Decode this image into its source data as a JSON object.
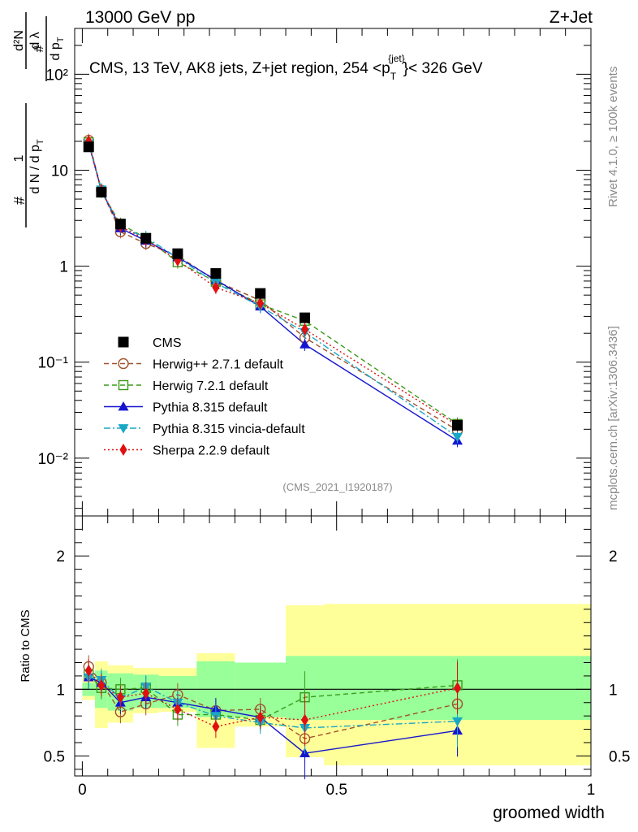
{
  "header": {
    "left": "13000 GeV pp",
    "right": "Z+Jet"
  },
  "side_text": {
    "rivet": "Rivet 4.1.0, ≥ 100k events",
    "mcplots": "mcplots.cern.ch [arXiv:1306.3436]"
  },
  "chart_data": [
    {
      "type": "scatter",
      "title": "CMS, 13 TeV, AK8 jets, Z+jet region, 254 <p",
      "title_sup": "{jet}",
      "title_sub": "T",
      "title_tail": "}< 326 GeV",
      "analysis_tag": "(CMS_2021_I1920187)",
      "ylabel": "1/N dN/dλ (per p_T)",
      "yscale": "log",
      "ylim": [
        0.0025,
        300
      ],
      "xlim": [
        -0.015,
        1.0
      ],
      "y_tick_labels": [
        "10⁻²",
        "10⁻¹",
        "1",
        "10",
        "10²"
      ],
      "x": [
        0.0125,
        0.0375,
        0.075,
        0.125,
        0.1875,
        0.2625,
        0.35,
        0.4375,
        0.7375
      ],
      "series": [
        {
          "name": "CMS",
          "color": "#000000",
          "marker": "square-filled",
          "line": "none",
          "values": [
            17.5,
            5.9,
            2.75,
            1.95,
            1.35,
            0.84,
            0.52,
            0.29,
            0.022
          ]
        },
        {
          "name": "Herwig++ 2.7.1 default",
          "color": "#a0522d",
          "marker": "circle-open",
          "line": "dashed",
          "values": [
            20.5,
            6.2,
            2.28,
            1.72,
            1.29,
            0.7,
            0.44,
            0.18,
            0.0195
          ]
        },
        {
          "name": "Herwig 7.2.1 default",
          "color": "#3a9a1a",
          "marker": "square-open",
          "line": "dashed",
          "values": [
            19.5,
            6.0,
            2.75,
            1.97,
            1.1,
            0.69,
            0.4,
            0.27,
            0.0227
          ]
        },
        {
          "name": "Pythia 8.315 default",
          "color": "#1515d0",
          "marker": "triangle-up",
          "line": "solid",
          "values": [
            19.0,
            6.2,
            2.48,
            1.84,
            1.24,
            0.72,
            0.38,
            0.153,
            0.0152
          ]
        },
        {
          "name": "Pythia 8.315 vincia-default",
          "color": "#1aa7c6",
          "marker": "triangle-down",
          "line": "dashdot",
          "values": [
            19.0,
            6.3,
            2.55,
            2.0,
            1.22,
            0.67,
            0.38,
            0.205,
            0.0167
          ]
        },
        {
          "name": "Sherpa 2.2.9 default",
          "color": "#e01010",
          "marker": "diamond",
          "line": "dotted",
          "values": [
            20.0,
            6.1,
            2.6,
            1.89,
            1.15,
            0.6,
            0.41,
            0.22,
            0.022
          ]
        }
      ]
    },
    {
      "type": "scatter",
      "ylabel": "Ratio to CMS",
      "xlabel": "groomed width",
      "ylim": [
        0.35,
        2.3
      ],
      "xlim": [
        -0.015,
        1.0
      ],
      "y_tick_labels": [
        "0.5",
        "1",
        "2"
      ],
      "x_tick_labels": [
        "0",
        "0.5",
        "1"
      ],
      "band_edges": [
        0,
        0.025,
        0.05,
        0.1,
        0.15,
        0.225,
        0.3,
        0.4,
        0.475,
        1.0
      ],
      "band_inner": [
        [
          0.95,
          1.05
        ],
        [
          0.86,
          1.14
        ],
        [
          0.84,
          1.12
        ],
        [
          0.86,
          1.11
        ],
        [
          0.86,
          1.1
        ],
        [
          0.79,
          1.21
        ],
        [
          0.79,
          1.2
        ],
        [
          0.77,
          1.25
        ],
        [
          0.77,
          1.25
        ]
      ],
      "band_outer": [
        [
          0.92,
          1.08
        ],
        [
          0.71,
          1.21
        ],
        [
          0.75,
          1.18
        ],
        [
          0.82,
          1.16
        ],
        [
          0.83,
          1.16
        ],
        [
          0.56,
          1.27
        ],
        [
          0.72,
          1.2
        ],
        [
          0.49,
          1.63
        ],
        [
          0.43,
          1.64
        ]
      ],
      "series": [
        {
          "name": "Herwig++ 2.7.1 default",
          "color": "#a0522d",
          "values": [
            1.17,
            1.05,
            0.83,
            0.89,
            0.96,
            0.84,
            0.85,
            0.63,
            0.89
          ]
        },
        {
          "name": "Herwig 7.2.1 default",
          "color": "#3a9a1a",
          "values": [
            1.11,
            1.01,
            1.0,
            1.01,
            0.81,
            0.81,
            0.77,
            0.94,
            1.03
          ]
        },
        {
          "name": "Pythia 8.315 default",
          "color": "#1515d0",
          "values": [
            1.09,
            1.05,
            0.9,
            0.94,
            0.9,
            0.85,
            0.79,
            0.52,
            0.69
          ]
        },
        {
          "name": "Pythia 8.315 vincia-default",
          "color": "#1aa7c6",
          "values": [
            1.09,
            1.07,
            0.93,
            1.02,
            0.9,
            0.8,
            0.75,
            0.71,
            0.76
          ]
        },
        {
          "name": "Sherpa 2.2.9 default",
          "color": "#e01010",
          "values": [
            1.14,
            1.03,
            0.94,
            0.97,
            0.85,
            0.72,
            0.79,
            0.77,
            1.01
          ]
        }
      ]
    }
  ]
}
